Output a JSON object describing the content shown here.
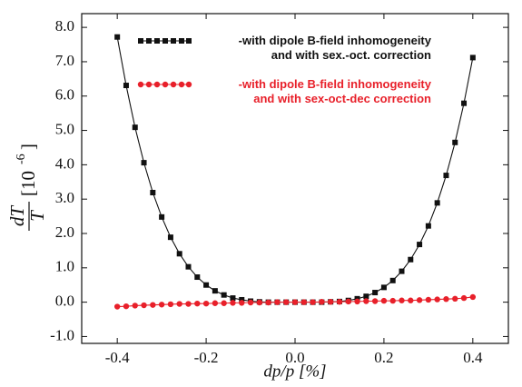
{
  "chart_data": {
    "type": "line",
    "xlabel": "dp/p [%]",
    "ylabel": {
      "fraction": [
        "dT",
        "T"
      ],
      "unit": "[10",
      "exponent": "-6",
      "unit_end": "]"
    },
    "xlim": [
      -0.48,
      0.48
    ],
    "ylim": [
      -1.2,
      8.4
    ],
    "xticks": [
      -0.4,
      -0.2,
      {
        "value": 0,
        "label": "0.0"
      },
      0.2,
      0.4
    ],
    "yticks": [
      {
        "value": -1,
        "label": "-1.0"
      },
      {
        "value": 0,
        "label": "0.0"
      },
      {
        "value": 1,
        "label": "1.0"
      },
      {
        "value": 2,
        "label": "2.0"
      },
      {
        "value": 3,
        "label": "3.0"
      },
      {
        "value": 4,
        "label": "4.0"
      },
      {
        "value": 5,
        "label": "5.0"
      },
      {
        "value": 6,
        "label": "6.0"
      },
      {
        "value": 7,
        "label": "7.0"
      },
      {
        "value": 8,
        "label": "8.0"
      }
    ],
    "x": [
      -0.4,
      -0.38,
      -0.36,
      -0.34,
      -0.32,
      -0.3,
      -0.28,
      -0.26,
      -0.24,
      -0.22,
      -0.2,
      -0.18,
      -0.16,
      -0.14,
      -0.12,
      -0.1,
      -0.08,
      -0.06,
      -0.04,
      -0.02,
      0,
      0.02,
      0.04,
      0.06,
      0.08,
      0.1,
      0.12,
      0.14,
      0.16,
      0.18,
      0.2,
      0.22,
      0.24,
      0.26,
      0.28,
      0.3,
      0.32,
      0.34,
      0.36,
      0.38,
      0.4
    ],
    "series": [
      {
        "name": "-with dipole B-field inhomogeneity\nand with sex.-oct. correction",
        "color": "#111111",
        "marker": "square",
        "values": [
          7.72,
          6.31,
          5.09,
          4.06,
          3.19,
          2.48,
          1.89,
          1.41,
          1.03,
          0.73,
          0.5,
          0.33,
          0.21,
          0.12,
          0.07,
          0.03,
          0.01,
          0,
          0,
          0,
          0,
          0,
          0,
          0,
          0.01,
          0.02,
          0.05,
          0.1,
          0.17,
          0.28,
          0.43,
          0.63,
          0.9,
          1.24,
          1.68,
          2.22,
          2.89,
          3.69,
          4.65,
          5.79,
          7.12
        ]
      },
      {
        "name": "-with dipole B-field inhomogeneity\nand with sex-oct-dec correction",
        "color": "#e8202a",
        "marker": "circle",
        "values": [
          -0.13,
          -0.12,
          -0.1,
          -0.09,
          -0.08,
          -0.07,
          -0.06,
          -0.05,
          -0.05,
          -0.04,
          -0.04,
          -0.03,
          -0.03,
          -0.02,
          -0.02,
          -0.01,
          -0.01,
          -0.01,
          0,
          0,
          0,
          0,
          0,
          0.01,
          0.01,
          0.01,
          0.02,
          0.02,
          0.03,
          0.03,
          0.04,
          0.04,
          0.05,
          0.05,
          0.06,
          0.07,
          0.08,
          0.09,
          0.1,
          0.12,
          0.15
        ]
      }
    ]
  }
}
